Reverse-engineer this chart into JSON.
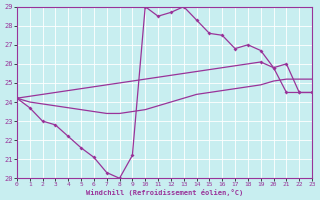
{
  "bg_color": "#c8eef0",
  "line_color": "#993399",
  "grid_color": "#ffffff",
  "xlabel": "Windchill (Refroidissement éolien,°C)",
  "xlim": [
    0,
    23
  ],
  "ylim": [
    20,
    29
  ],
  "xticks": [
    0,
    1,
    2,
    3,
    4,
    5,
    6,
    7,
    8,
    9,
    10,
    11,
    12,
    13,
    14,
    15,
    16,
    17,
    18,
    19,
    20,
    21,
    22,
    23
  ],
  "yticks": [
    20,
    21,
    22,
    23,
    24,
    25,
    26,
    27,
    28,
    29
  ],
  "curve1_x": [
    0,
    1,
    2,
    3,
    4,
    5,
    6,
    7,
    8,
    9,
    10,
    11,
    12,
    13,
    14,
    15,
    16,
    17,
    18,
    19,
    20,
    21,
    22,
    23
  ],
  "curve1_y": [
    24.2,
    23.7,
    23.0,
    22.8,
    22.2,
    21.6,
    21.1,
    20.3,
    20.0,
    21.2,
    29.0,
    28.5,
    28.7,
    29.0,
    28.3,
    27.6,
    27.5,
    26.8,
    27.0,
    26.7,
    25.8,
    24.5,
    24.5,
    24.5
  ],
  "curve2_x": [
    0,
    1,
    2,
    3,
    4,
    5,
    6,
    7,
    8,
    9,
    10,
    11,
    12,
    13,
    14,
    15,
    16,
    17,
    18,
    19,
    20,
    21,
    22,
    23
  ],
  "curve2_y": [
    24.2,
    24.0,
    23.9,
    23.8,
    23.7,
    23.6,
    23.5,
    23.4,
    23.4,
    23.5,
    23.6,
    23.8,
    24.0,
    24.2,
    24.4,
    24.5,
    24.6,
    24.7,
    24.8,
    24.9,
    25.1,
    25.2,
    25.2,
    25.2
  ],
  "curve3_x": [
    0,
    19,
    20,
    21,
    22,
    23
  ],
  "curve3_y": [
    24.2,
    26.1,
    25.8,
    26.0,
    24.5,
    24.5
  ]
}
